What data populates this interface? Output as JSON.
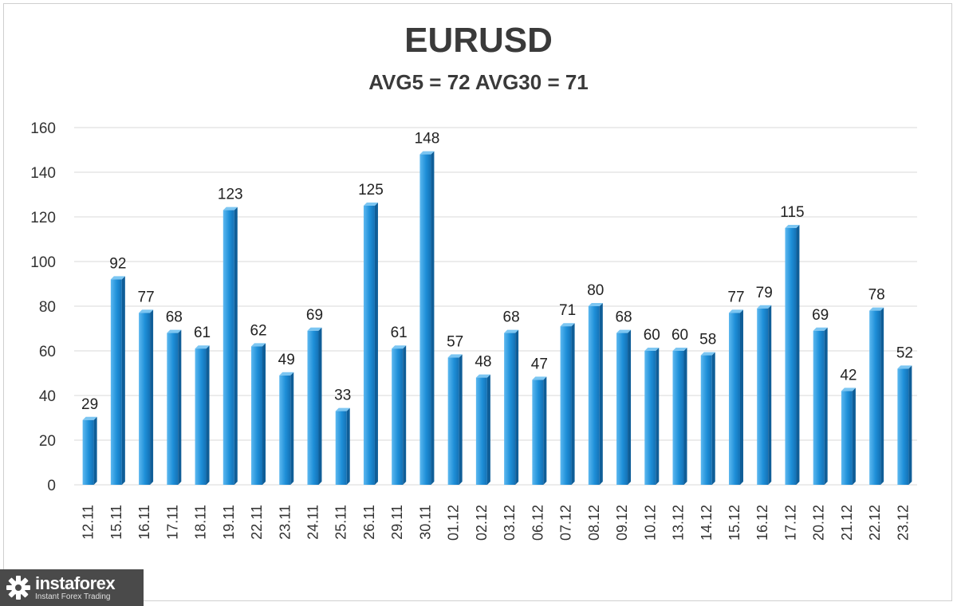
{
  "chart_data": {
    "type": "bar",
    "title": "EURUSD",
    "subtitle": "AVG5 = 72 AVG30 = 71",
    "categories": [
      "12.11",
      "15.11",
      "16.11",
      "17.11",
      "18.11",
      "19.11",
      "22.11",
      "23.11",
      "24.11",
      "25.11",
      "26.11",
      "29.11",
      "30.11",
      "01.12",
      "02.12",
      "03.12",
      "06.12",
      "07.12",
      "08.12",
      "09.12",
      "10.12",
      "13.12",
      "14.12",
      "15.12",
      "16.12",
      "17.12",
      "20.12",
      "21.12",
      "22.12",
      "23.12"
    ],
    "values": [
      29,
      92,
      77,
      68,
      61,
      123,
      62,
      49,
      69,
      33,
      125,
      61,
      148,
      57,
      48,
      68,
      47,
      71,
      80,
      68,
      60,
      60,
      58,
      77,
      79,
      115,
      69,
      42,
      78,
      52
    ],
    "ylim": [
      0,
      160
    ],
    "yticks": [
      0,
      20,
      40,
      60,
      80,
      100,
      120,
      140,
      160
    ],
    "grid": true,
    "bar_color": "#1e8fd8",
    "data_labels": true
  },
  "logo": {
    "name": "instaforex",
    "tagline": "Instant Forex Trading"
  }
}
